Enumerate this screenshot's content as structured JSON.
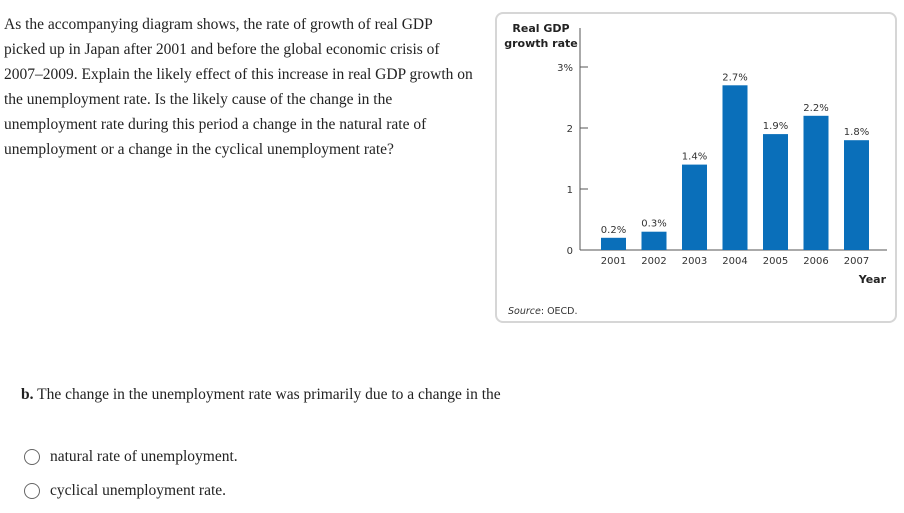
{
  "question": "As the accompanying diagram shows, the rate of growth of real GDP picked up in Japan after 2001 and before the global economic crisis of 2007–2009. Explain the likely effect of this increase in real GDP growth on the unemployment rate. Is the likely cause of the change in the unemployment rate during this period a change in the natural rate of unemployment or a change in the cyclical unemployment rate?",
  "part_b": {
    "label": "b.",
    "text": "The change in the unemployment rate was primarily due to a change in the"
  },
  "options": [
    "natural rate of unemployment.",
    "cyclical unemployment rate."
  ],
  "chart_data": {
    "type": "bar",
    "ylabel_line1": "Real GDP",
    "ylabel_line2": "growth rate",
    "xlabel": "Year",
    "source_label": "Source",
    "source_value": ": OECD.",
    "categories": [
      "2001",
      "2002",
      "2003",
      "2004",
      "2005",
      "2006",
      "2007"
    ],
    "values": [
      0.2,
      0.3,
      1.4,
      2.7,
      1.9,
      2.2,
      1.8
    ],
    "data_labels": [
      "0.2%",
      "0.3%",
      "1.4%",
      "2.7%",
      "1.9%",
      "2.2%",
      "1.8%"
    ],
    "yticks": [
      0,
      1,
      2,
      3
    ],
    "ytick_labels": [
      "0",
      "1",
      "2",
      "3%"
    ],
    "ylim": [
      0,
      3.6
    ],
    "bar_color": "#0a6fba",
    "grid": false
  }
}
